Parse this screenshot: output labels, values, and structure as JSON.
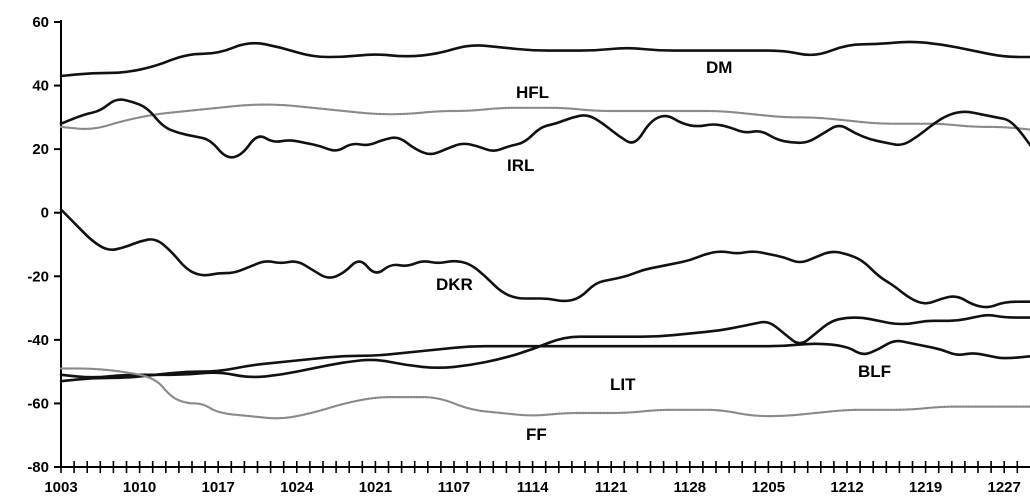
{
  "chart_data": {
    "type": "line",
    "title": "",
    "xlabel": "",
    "ylabel": "",
    "ylim": [
      -80,
      60
    ],
    "yticks": [
      60,
      40,
      20,
      0,
      -20,
      -40,
      -60,
      -80
    ],
    "x_tick_labels": [
      "1003",
      "1010",
      "1017",
      "1024",
      "1021",
      "1107",
      "1114",
      "1121",
      "1128",
      "1205",
      "1212",
      "1219",
      "1227"
    ],
    "x_count": 75,
    "grid": false,
    "legend": "none (series labeled inline)",
    "series": [
      {
        "name": "DM",
        "color": "#111111",
        "style": "solid",
        "points": [
          [
            0,
            43
          ],
          [
            4,
            44
          ],
          [
            8,
            44
          ],
          [
            12,
            46
          ],
          [
            16,
            50
          ],
          [
            20,
            50
          ],
          [
            24,
            54
          ],
          [
            28,
            52
          ],
          [
            32,
            49
          ],
          [
            36,
            49
          ],
          [
            40,
            50
          ],
          [
            44,
            49
          ],
          [
            48,
            50
          ],
          [
            52,
            53
          ],
          [
            56,
            52
          ],
          [
            60,
            51
          ],
          [
            64,
            51
          ],
          [
            68,
            51
          ],
          [
            72,
            52
          ],
          [
            76,
            51
          ],
          [
            80,
            51
          ],
          [
            84,
            51
          ],
          [
            88,
            51
          ],
          [
            92,
            51
          ],
          [
            96,
            49
          ],
          [
            100,
            53
          ],
          [
            104,
            53
          ],
          [
            108,
            54
          ],
          [
            112,
            53
          ],
          [
            116,
            51
          ],
          [
            120,
            49
          ],
          [
            124,
            49
          ]
        ]
      },
      {
        "name": "HFL",
        "color": "#8a8a8a",
        "style": "dotted",
        "points": [
          [
            0,
            27
          ],
          [
            4,
            26
          ],
          [
            8,
            29
          ],
          [
            12,
            31
          ],
          [
            16,
            32
          ],
          [
            20,
            33
          ],
          [
            24,
            34
          ],
          [
            28,
            34
          ],
          [
            32,
            33
          ],
          [
            36,
            32
          ],
          [
            40,
            31
          ],
          [
            44,
            31
          ],
          [
            48,
            32
          ],
          [
            52,
            32
          ],
          [
            56,
            33
          ],
          [
            60,
            33
          ],
          [
            64,
            33
          ],
          [
            68,
            32
          ],
          [
            72,
            32
          ],
          [
            76,
            32
          ],
          [
            80,
            32
          ],
          [
            84,
            32
          ],
          [
            88,
            31
          ],
          [
            92,
            30
          ],
          [
            96,
            30
          ],
          [
            100,
            29
          ],
          [
            104,
            28
          ],
          [
            108,
            28
          ],
          [
            112,
            28
          ],
          [
            116,
            27
          ],
          [
            120,
            27
          ],
          [
            124,
            26
          ]
        ]
      },
      {
        "name": "IRL",
        "color": "#111111",
        "style": "solid",
        "points": [
          [
            0,
            28
          ],
          [
            3,
            31
          ],
          [
            5,
            32
          ],
          [
            7,
            36
          ],
          [
            9,
            35
          ],
          [
            11,
            33
          ],
          [
            13,
            27
          ],
          [
            15,
            25
          ],
          [
            17,
            24
          ],
          [
            19,
            23
          ],
          [
            21,
            17
          ],
          [
            23,
            18
          ],
          [
            25,
            25
          ],
          [
            27,
            22
          ],
          [
            29,
            23
          ],
          [
            31,
            22
          ],
          [
            33,
            21
          ],
          [
            35,
            19
          ],
          [
            37,
            22
          ],
          [
            39,
            21
          ],
          [
            41,
            23
          ],
          [
            43,
            24
          ],
          [
            45,
            20
          ],
          [
            47,
            18
          ],
          [
            49,
            20
          ],
          [
            51,
            22
          ],
          [
            53,
            21
          ],
          [
            55,
            19
          ],
          [
            57,
            21
          ],
          [
            59,
            22
          ],
          [
            61,
            27
          ],
          [
            63,
            28
          ],
          [
            65,
            30
          ],
          [
            67,
            31
          ],
          [
            69,
            28
          ],
          [
            71,
            24
          ],
          [
            73,
            21
          ],
          [
            75,
            29
          ],
          [
            77,
            31
          ],
          [
            79,
            28
          ],
          [
            81,
            27
          ],
          [
            83,
            28
          ],
          [
            85,
            27
          ],
          [
            87,
            25
          ],
          [
            89,
            26
          ],
          [
            91,
            23
          ],
          [
            93,
            22
          ],
          [
            95,
            22
          ],
          [
            97,
            25
          ],
          [
            99,
            28
          ],
          [
            101,
            25
          ],
          [
            103,
            23
          ],
          [
            105,
            22
          ],
          [
            107,
            21
          ],
          [
            109,
            24
          ],
          [
            111,
            28
          ],
          [
            113,
            31
          ],
          [
            115,
            32
          ],
          [
            117,
            31
          ],
          [
            119,
            30
          ],
          [
            121,
            29
          ],
          [
            124,
            19
          ]
        ]
      },
      {
        "name": "DKR",
        "color": "#111111",
        "style": "solid",
        "points": [
          [
            0,
            1
          ],
          [
            2,
            -4
          ],
          [
            4,
            -9
          ],
          [
            6,
            -12
          ],
          [
            8,
            -11
          ],
          [
            10,
            -9
          ],
          [
            12,
            -8
          ],
          [
            14,
            -12
          ],
          [
            16,
            -18
          ],
          [
            18,
            -20
          ],
          [
            20,
            -19
          ],
          [
            22,
            -19
          ],
          [
            24,
            -17
          ],
          [
            26,
            -15
          ],
          [
            28,
            -16
          ],
          [
            30,
            -15
          ],
          [
            32,
            -18
          ],
          [
            34,
            -21
          ],
          [
            36,
            -19
          ],
          [
            38,
            -14
          ],
          [
            40,
            -20
          ],
          [
            42,
            -16
          ],
          [
            44,
            -17
          ],
          [
            46,
            -15
          ],
          [
            48,
            -16
          ],
          [
            50,
            -15
          ],
          [
            52,
            -16
          ],
          [
            54,
            -20
          ],
          [
            56,
            -25
          ],
          [
            58,
            -27
          ],
          [
            60,
            -27
          ],
          [
            62,
            -27
          ],
          [
            64,
            -28
          ],
          [
            66,
            -27
          ],
          [
            68,
            -22
          ],
          [
            70,
            -21
          ],
          [
            72,
            -20
          ],
          [
            74,
            -18
          ],
          [
            76,
            -17
          ],
          [
            78,
            -16
          ],
          [
            80,
            -15
          ],
          [
            82,
            -13
          ],
          [
            84,
            -12
          ],
          [
            86,
            -13
          ],
          [
            88,
            -12
          ],
          [
            90,
            -13
          ],
          [
            92,
            -14
          ],
          [
            94,
            -16
          ],
          [
            96,
            -14
          ],
          [
            98,
            -12
          ],
          [
            100,
            -13
          ],
          [
            102,
            -15
          ],
          [
            104,
            -20
          ],
          [
            106,
            -23
          ],
          [
            108,
            -27
          ],
          [
            110,
            -29
          ],
          [
            112,
            -27
          ],
          [
            114,
            -26
          ],
          [
            116,
            -29
          ],
          [
            118,
            -30
          ],
          [
            120,
            -28
          ],
          [
            124,
            -28
          ]
        ]
      },
      {
        "name": "BLF",
        "color": "#111111",
        "style": "solid",
        "points": [
          [
            0,
            -53
          ],
          [
            4,
            -52
          ],
          [
            8,
            -52
          ],
          [
            12,
            -51
          ],
          [
            16,
            -50
          ],
          [
            20,
            -50
          ],
          [
            24,
            -48
          ],
          [
            28,
            -47
          ],
          [
            32,
            -46
          ],
          [
            36,
            -45
          ],
          [
            40,
            -45
          ],
          [
            44,
            -44
          ],
          [
            48,
            -43
          ],
          [
            52,
            -42
          ],
          [
            56,
            -42
          ],
          [
            60,
            -42
          ],
          [
            64,
            -42
          ],
          [
            68,
            -42
          ],
          [
            72,
            -42
          ],
          [
            76,
            -42
          ],
          [
            80,
            -42
          ],
          [
            84,
            -42
          ],
          [
            88,
            -42
          ],
          [
            92,
            -42
          ],
          [
            96,
            -41
          ],
          [
            100,
            -42
          ],
          [
            102,
            -45
          ],
          [
            104,
            -43
          ],
          [
            106,
            -40
          ],
          [
            108,
            -41
          ],
          [
            110,
            -42
          ],
          [
            112,
            -43
          ],
          [
            114,
            -45
          ],
          [
            116,
            -44
          ],
          [
            118,
            -45
          ],
          [
            120,
            -46
          ],
          [
            124,
            -45
          ]
        ]
      },
      {
        "name": "LIT",
        "color": "#111111",
        "style": "solid",
        "points": [
          [
            0,
            -51
          ],
          [
            4,
            -52
          ],
          [
            8,
            -51
          ],
          [
            12,
            -51
          ],
          [
            16,
            -51
          ],
          [
            20,
            -50
          ],
          [
            24,
            -52
          ],
          [
            28,
            -51
          ],
          [
            32,
            -49
          ],
          [
            36,
            -47
          ],
          [
            40,
            -46
          ],
          [
            44,
            -48
          ],
          [
            48,
            -49
          ],
          [
            52,
            -48
          ],
          [
            56,
            -46
          ],
          [
            60,
            -43
          ],
          [
            64,
            -39
          ],
          [
            68,
            -39
          ],
          [
            72,
            -39
          ],
          [
            76,
            -39
          ],
          [
            80,
            -38
          ],
          [
            84,
            -37
          ],
          [
            86,
            -36
          ],
          [
            88,
            -35
          ],
          [
            90,
            -34
          ],
          [
            92,
            -38
          ],
          [
            94,
            -42
          ],
          [
            96,
            -38
          ],
          [
            98,
            -34
          ],
          [
            100,
            -33
          ],
          [
            102,
            -33
          ],
          [
            104,
            -34
          ],
          [
            106,
            -35
          ],
          [
            108,
            -35
          ],
          [
            110,
            -34
          ],
          [
            112,
            -34
          ],
          [
            114,
            -34
          ],
          [
            116,
            -33
          ],
          [
            118,
            -32
          ],
          [
            120,
            -33
          ],
          [
            124,
            -33
          ]
        ]
      },
      {
        "name": "FF",
        "color": "#8a8a8a",
        "style": "dotted",
        "points": [
          [
            0,
            -49
          ],
          [
            4,
            -49
          ],
          [
            8,
            -50
          ],
          [
            12,
            -52
          ],
          [
            14,
            -58
          ],
          [
            16,
            -60
          ],
          [
            18,
            -60
          ],
          [
            20,
            -63
          ],
          [
            24,
            -64
          ],
          [
            28,
            -65
          ],
          [
            32,
            -63
          ],
          [
            36,
            -60
          ],
          [
            40,
            -58
          ],
          [
            44,
            -58
          ],
          [
            48,
            -58
          ],
          [
            52,
            -62
          ],
          [
            56,
            -63
          ],
          [
            60,
            -64
          ],
          [
            64,
            -63
          ],
          [
            68,
            -63
          ],
          [
            72,
            -63
          ],
          [
            76,
            -62
          ],
          [
            80,
            -62
          ],
          [
            84,
            -62
          ],
          [
            88,
            -64
          ],
          [
            92,
            -64
          ],
          [
            96,
            -63
          ],
          [
            100,
            -62
          ],
          [
            104,
            -62
          ],
          [
            108,
            -62
          ],
          [
            112,
            -61
          ],
          [
            116,
            -61
          ],
          [
            120,
            -61
          ],
          [
            124,
            -61
          ]
        ]
      }
    ]
  }
}
